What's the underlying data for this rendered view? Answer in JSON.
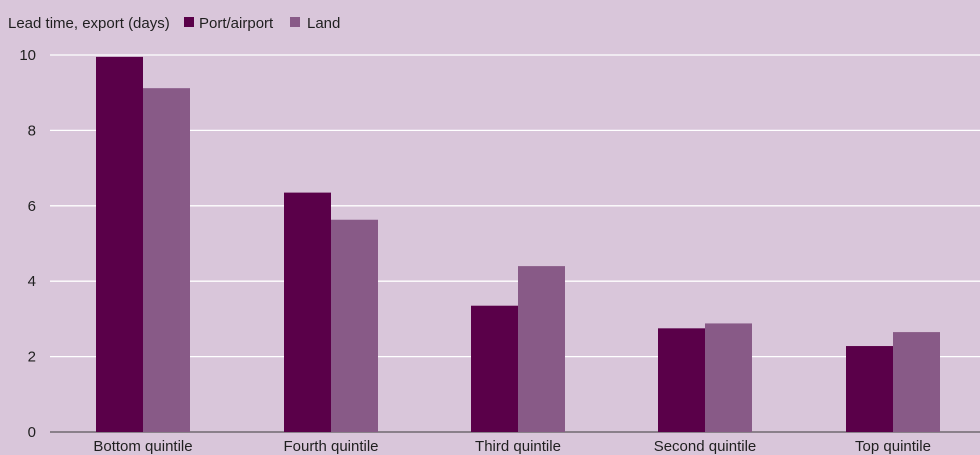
{
  "chart_data": {
    "type": "bar",
    "title": "",
    "ylabel": "Lead time, export (days)",
    "xlabel": "",
    "categories": [
      "Bottom quintile",
      "Fourth quintile",
      "Third quintile",
      "Second quintile",
      "Top quintile"
    ],
    "series": [
      {
        "name": "Port/airport",
        "color": "#5a0049",
        "values": [
          9.95,
          6.35,
          3.35,
          2.75,
          2.28
        ]
      },
      {
        "name": "Land",
        "color": "#885a87",
        "values": [
          9.12,
          5.63,
          4.4,
          2.88,
          2.65
        ]
      }
    ],
    "ylim": [
      0,
      10
    ],
    "yticks": [
      0,
      2,
      4,
      6,
      8,
      10
    ],
    "grid": true,
    "legend_position": "top-left",
    "background": "#d9c6da",
    "gridline_color": "#ffffff"
  }
}
